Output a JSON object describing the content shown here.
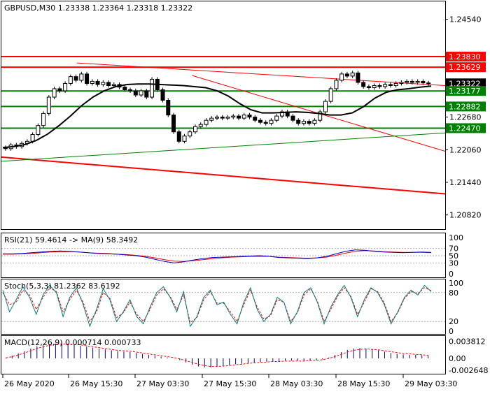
{
  "chart_data": [
    {
      "type": "candlestick",
      "title": "GBPUSD,M30  1.23338 1.23364 1.23318 1.23322",
      "symbol": "GBPUSD",
      "timeframe": "M30",
      "ohlc_header": {
        "open": 1.23338,
        "high": 1.23364,
        "low": 1.23318,
        "close": 1.23322
      },
      "ylim": [
        1.2055,
        1.2488
      ],
      "y_ticks": [
        "1.24540",
        "1.23830",
        "1.23629",
        "1.23322",
        "1.23177",
        "1.22882",
        "1.22680",
        "1.22470",
        "1.22060",
        "1.21440",
        "1.20820"
      ],
      "x_ticks": [
        "26 May 2020",
        "26 May 15:30",
        "27 May 03:30",
        "27 May 15:30",
        "28 May 03:30",
        "28 May 15:30",
        "29 May 03:30"
      ],
      "horizontal_levels": [
        {
          "value": 1.2383,
          "label": "1.23830",
          "color": "#ff0000"
        },
        {
          "value": 1.23629,
          "label": "1.23629",
          "color": "#ff0000"
        },
        {
          "value": 1.23177,
          "label": "1.23177",
          "color": "#008000"
        },
        {
          "value": 1.22882,
          "label": "1.22882",
          "color": "#008000"
        },
        {
          "value": 1.2247,
          "label": "1.22470",
          "color": "#008000"
        }
      ],
      "current_price_label": "1.23322",
      "ma_line": [
        1.221,
        1.2212,
        1.2216,
        1.2224,
        1.2236,
        1.2252,
        1.227,
        1.229,
        1.2306,
        1.2318,
        1.2326,
        1.233,
        1.2331,
        1.2331,
        1.233,
        1.2329,
        1.2328,
        1.2326,
        1.2324,
        1.2318,
        1.2308,
        1.2294,
        1.2282,
        1.2276,
        1.2276,
        1.2277,
        1.2278,
        1.2277,
        1.2275,
        1.2272,
        1.2272,
        1.2276,
        1.2288,
        1.2304,
        1.2315,
        1.232,
        1.2322,
        1.2325,
        1.2327
      ],
      "candles": [
        [
          1.221,
          1.2208
        ],
        [
          1.2208,
          1.2215
        ],
        [
          1.2215,
          1.2212
        ],
        [
          1.2212,
          1.2218
        ],
        [
          1.2218,
          1.2222
        ],
        [
          1.2222,
          1.2235
        ],
        [
          1.2235,
          1.2252
        ],
        [
          1.2252,
          1.2275
        ],
        [
          1.2275,
          1.2306
        ],
        [
          1.2306,
          1.2322
        ],
        [
          1.2322,
          1.2318
        ],
        [
          1.2318,
          1.2332
        ],
        [
          1.2332,
          1.2345
        ],
        [
          1.2345,
          1.2338
        ],
        [
          1.2338,
          1.235
        ],
        [
          1.235,
          1.2332
        ],
        [
          1.2332,
          1.2336
        ],
        [
          1.2336,
          1.233
        ],
        [
          1.233,
          1.2334
        ],
        [
          1.2334,
          1.2328
        ],
        [
          1.2328,
          1.233
        ],
        [
          1.233,
          1.2325
        ],
        [
          1.2325,
          1.232
        ],
        [
          1.232,
          1.2318
        ],
        [
          1.2318,
          1.231
        ],
        [
          1.231,
          1.2318
        ],
        [
          1.2318,
          1.2306
        ],
        [
          1.2306,
          1.234
        ],
        [
          1.234,
          1.232
        ],
        [
          1.232,
          1.23
        ],
        [
          1.23,
          1.2272
        ],
        [
          1.2272,
          1.224
        ],
        [
          1.224,
          1.2222
        ],
        [
          1.2222,
          1.2232
        ],
        [
          1.2232,
          1.224
        ],
        [
          1.224,
          1.225
        ],
        [
          1.225,
          1.2254
        ],
        [
          1.2254,
          1.2262
        ],
        [
          1.2262,
          1.2266
        ],
        [
          1.2266,
          1.2268
        ],
        [
          1.2268,
          1.2266
        ],
        [
          1.2266,
          1.2268
        ],
        [
          1.2268,
          1.227
        ],
        [
          1.227,
          1.2266
        ],
        [
          1.2266,
          1.2272
        ],
        [
          1.2272,
          1.2268
        ],
        [
          1.2268,
          1.2262
        ],
        [
          1.2262,
          1.2258
        ],
        [
          1.2258,
          1.2256
        ],
        [
          1.2256,
          1.2262
        ],
        [
          1.2262,
          1.227
        ],
        [
          1.227,
          1.2278
        ],
        [
          1.2278,
          1.227
        ],
        [
          1.227,
          1.2262
        ],
        [
          1.2262,
          1.2256
        ],
        [
          1.2256,
          1.226
        ],
        [
          1.226,
          1.2256
        ],
        [
          1.2256,
          1.2262
        ],
        [
          1.2262,
          1.2278
        ],
        [
          1.2278,
          1.2298
        ],
        [
          1.2298,
          1.2322
        ],
        [
          1.2322,
          1.2338
        ],
        [
          1.2338,
          1.235
        ],
        [
          1.235,
          1.2346
        ],
        [
          1.2346,
          1.2352
        ],
        [
          1.2352,
          1.2334
        ],
        [
          1.2334,
          1.2326
        ],
        [
          1.2326,
          1.2324
        ],
        [
          1.2324,
          1.2328
        ],
        [
          1.2328,
          1.2326
        ],
        [
          1.2326,
          1.233
        ],
        [
          1.233,
          1.2328
        ],
        [
          1.2328,
          1.2332
        ],
        [
          1.2332,
          1.2334
        ],
        [
          1.2334,
          1.2336
        ],
        [
          1.2336,
          1.2334
        ],
        [
          1.2334,
          1.2336
        ],
        [
          1.2336,
          1.2333
        ],
        [
          1.2333,
          1.2332
        ]
      ],
      "trendlines": [
        {
          "color": "#ff0000",
          "from": [
            0.17,
            1.2371
          ],
          "to": [
            1.0,
            1.2328
          ]
        },
        {
          "color": "#ff0000",
          "from": [
            0.43,
            1.2347
          ],
          "to": [
            1.0,
            1.2203
          ]
        },
        {
          "color": "#ff0000",
          "from": [
            0.0,
            1.2192
          ],
          "to": [
            1.0,
            1.2122
          ]
        },
        {
          "color": "#008000",
          "from": [
            0.0,
            1.2184
          ],
          "to": [
            1.0,
            1.2238
          ]
        }
      ]
    },
    {
      "type": "line",
      "title": "RSI(21) 59.4614 -> MA(9) 58.3492",
      "ylim": [
        0,
        100
      ],
      "y_ticks": [
        "100",
        "70",
        "50",
        "30",
        "0"
      ],
      "series": [
        {
          "color": "#0000cc",
          "values": [
            55,
            55,
            56,
            58,
            60,
            62,
            63,
            62,
            60,
            58,
            56,
            55,
            54,
            52,
            50,
            46,
            40,
            34,
            30,
            33,
            38,
            42,
            45,
            46,
            47,
            48,
            49,
            50,
            48,
            45,
            44,
            43,
            42,
            44,
            48,
            55,
            62,
            66,
            65,
            62,
            60,
            59,
            58,
            59,
            60,
            59
          ]
        },
        {
          "color": "#ff0000",
          "values": [
            54,
            54,
            55,
            56,
            58,
            60,
            61,
            61,
            60,
            58,
            57,
            56,
            54,
            53,
            51,
            48,
            44,
            39,
            35,
            34,
            36,
            39,
            42,
            44,
            46,
            47,
            48,
            48,
            48,
            46,
            45,
            44,
            43,
            44,
            46,
            51,
            57,
            62,
            64,
            63,
            61,
            60,
            59,
            59,
            59,
            58
          ]
        }
      ]
    },
    {
      "type": "line",
      "title": "Stoch(5,3,3) 81.2362 83.6192",
      "ylim": [
        0,
        100
      ],
      "y_ticks": [
        "100",
        "80",
        "20",
        "0"
      ],
      "series": [
        {
          "color": "#008080",
          "values": [
            85,
            40,
            65,
            92,
            70,
            35,
            75,
            95,
            80,
            30,
            70,
            90,
            55,
            10,
            45,
            88,
            65,
            20,
            40,
            65,
            30,
            15,
            50,
            80,
            92,
            70,
            40,
            82,
            10,
            30,
            70,
            85,
            55,
            60,
            35,
            15,
            60,
            90,
            45,
            20,
            35,
            70,
            60,
            15,
            40,
            80,
            90,
            60,
            15,
            50,
            75,
            95,
            70,
            30,
            65,
            90,
            80,
            55,
            15,
            40,
            70,
            85,
            75,
            95,
            82
          ]
        },
        {
          "color": "#ff0000",
          "values": [
            80,
            55,
            60,
            85,
            75,
            45,
            70,
            90,
            82,
            40,
            65,
            85,
            60,
            20,
            40,
            80,
            68,
            28,
            38,
            60,
            35,
            20,
            45,
            75,
            88,
            72,
            45,
            75,
            18,
            28,
            65,
            82,
            58,
            58,
            40,
            20,
            55,
            85,
            50,
            25,
            32,
            65,
            60,
            20,
            38,
            75,
            88,
            62,
            20,
            45,
            72,
            90,
            72,
            35,
            60,
            88,
            82,
            58,
            20,
            38,
            68,
            82,
            78,
            90,
            84
          ]
        }
      ]
    },
    {
      "type": "bar",
      "title": "MACD(12,26,9) 0.000714 0.000733",
      "y_ticks": [
        "0.003812",
        "0.00",
        "-0.002648"
      ],
      "ylim": [
        -0.0031,
        0.0042
      ],
      "macd": [
        0.0002,
        0.0006,
        0.0011,
        0.0016,
        0.0022,
        0.0027,
        0.003,
        0.0032,
        0.0033,
        0.0033,
        0.0032,
        0.003,
        0.0028,
        0.0026,
        0.0024,
        0.0022,
        0.002,
        0.0018,
        0.0016,
        0.0015,
        0.0014,
        0.0012,
        0.001,
        0.0008,
        0.0006,
        0.0004,
        0.0002,
        0.0,
        -0.0004,
        -0.0009,
        -0.0014,
        -0.0018,
        -0.002,
        -0.002,
        -0.0019,
        -0.0017,
        -0.0015,
        -0.0013,
        -0.0012,
        -0.001,
        -0.0009,
        -0.0008,
        -0.0007,
        -0.0006,
        -0.0006,
        -0.0005,
        -0.0005,
        -0.0005,
        -0.0006,
        -0.0005,
        -0.0004,
        -0.0002,
        0.0002,
        0.0008,
        0.0014,
        0.0019,
        0.0022,
        0.0023,
        0.0022,
        0.002,
        0.0018,
        0.0015,
        0.0012,
        0.001,
        0.0009,
        0.0008,
        0.0008,
        0.0007,
        0.0007
      ],
      "signal": [
        0.0001,
        0.0004,
        0.0008,
        0.0012,
        0.0017,
        0.0022,
        0.0026,
        0.0029,
        0.0031,
        0.0032,
        0.0032,
        0.0031,
        0.003,
        0.0028,
        0.0026,
        0.0024,
        0.0022,
        0.002,
        0.0018,
        0.0017,
        0.0016,
        0.0014,
        0.0012,
        0.001,
        0.0008,
        0.0006,
        0.0004,
        0.0002,
        -0.0001,
        -0.0005,
        -0.0009,
        -0.0013,
        -0.0016,
        -0.0018,
        -0.0018,
        -0.0017,
        -0.0016,
        -0.0014,
        -0.0013,
        -0.0011,
        -0.001,
        -0.0009,
        -0.0008,
        -0.0007,
        -0.0007,
        -0.0006,
        -0.0006,
        -0.0006,
        -0.0006,
        -0.0005,
        -0.0004,
        -0.0003,
        0.0,
        0.0004,
        0.0009,
        0.0014,
        0.0018,
        0.002,
        0.0021,
        0.002,
        0.0019,
        0.0017,
        0.0015,
        0.0013,
        0.0011,
        0.001,
        0.0009,
        0.0008,
        0.0007
      ]
    }
  ]
}
